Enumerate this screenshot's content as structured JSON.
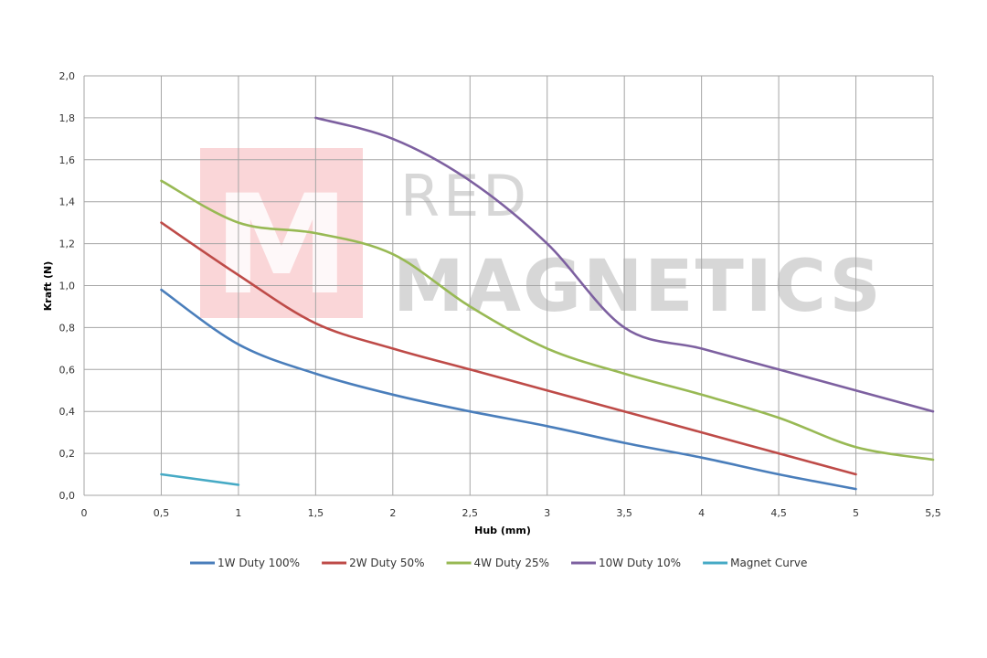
{
  "watermark": {
    "line1": "RED",
    "line2": "MAGNETICS",
    "logo_letter": "M",
    "logo_color": "#f4a3a8"
  },
  "chart_data": {
    "type": "line",
    "title": "",
    "xlabel": "Hub (mm)",
    "ylabel": "Kraft (N)",
    "xlim": [
      0,
      5.5
    ],
    "ylim": [
      0,
      2.0
    ],
    "x_ticks": [
      "0",
      "0,5",
      "1",
      "1,5",
      "2",
      "2,5",
      "3",
      "3,5",
      "4",
      "4,5",
      "5",
      "5,5"
    ],
    "y_ticks": [
      "0,0",
      "0,2",
      "0,4",
      "0,6",
      "0,8",
      "1,0",
      "1,2",
      "1,4",
      "1,6",
      "1,8",
      "2,0"
    ],
    "grid": true,
    "legend_position": "bottom",
    "series": [
      {
        "name": "1W Duty 100%",
        "color": "#4a7ebb",
        "points": [
          [
            0.5,
            0.98
          ],
          [
            1.0,
            0.72
          ],
          [
            1.5,
            0.58
          ],
          [
            2.0,
            0.48
          ],
          [
            2.5,
            0.4
          ],
          [
            3.0,
            0.33
          ],
          [
            3.5,
            0.25
          ],
          [
            4.0,
            0.18
          ],
          [
            4.5,
            0.1
          ],
          [
            5.0,
            0.03
          ]
        ]
      },
      {
        "name": "2W Duty 50%",
        "color": "#be4b48",
        "points": [
          [
            0.5,
            1.3
          ],
          [
            1.0,
            1.05
          ],
          [
            1.5,
            0.82
          ],
          [
            2.0,
            0.7
          ],
          [
            2.5,
            0.6
          ],
          [
            3.0,
            0.5
          ],
          [
            3.5,
            0.4
          ],
          [
            4.0,
            0.3
          ],
          [
            4.5,
            0.2
          ],
          [
            5.0,
            0.1
          ]
        ]
      },
      {
        "name": "4W Duty 25%",
        "color": "#98b954",
        "points": [
          [
            0.5,
            1.5
          ],
          [
            1.0,
            1.3
          ],
          [
            1.5,
            1.25
          ],
          [
            2.0,
            1.15
          ],
          [
            2.5,
            0.9
          ],
          [
            3.0,
            0.7
          ],
          [
            3.5,
            0.58
          ],
          [
            4.0,
            0.48
          ],
          [
            4.5,
            0.37
          ],
          [
            5.0,
            0.23
          ],
          [
            5.5,
            0.17
          ]
        ]
      },
      {
        "name": "10W Duty 10%",
        "color": "#7d60a0",
        "points": [
          [
            1.5,
            1.8
          ],
          [
            2.0,
            1.7
          ],
          [
            2.5,
            1.5
          ],
          [
            3.0,
            1.2
          ],
          [
            3.5,
            0.8
          ],
          [
            4.0,
            0.7
          ],
          [
            4.5,
            0.6
          ],
          [
            5.0,
            0.5
          ],
          [
            5.5,
            0.4
          ]
        ]
      },
      {
        "name": "Magnet Curve",
        "color": "#46aac5",
        "points": [
          [
            0.5,
            0.1
          ],
          [
            1.0,
            0.05
          ]
        ]
      }
    ]
  }
}
